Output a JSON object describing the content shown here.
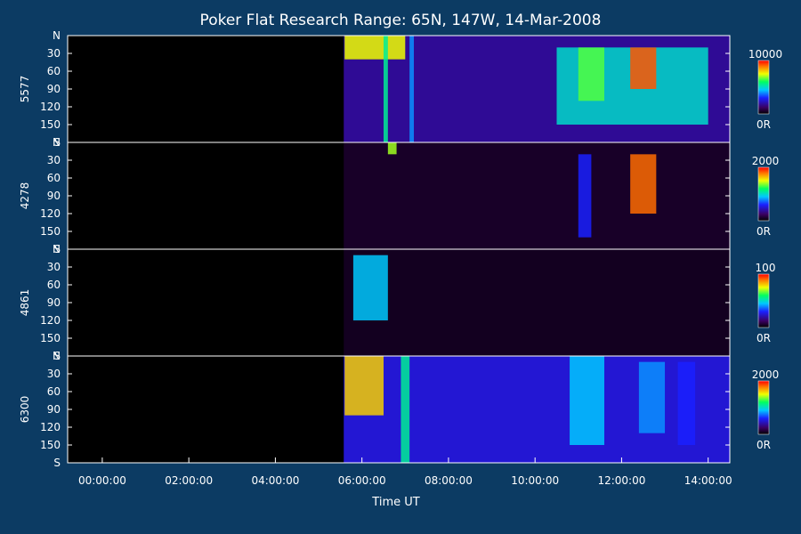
{
  "chart_data": {
    "type": "heatmap",
    "title": "Poker Flat Research Range: 65N, 147W, 14-Mar-2008",
    "xlabel": "Time UT",
    "x_range_hours": [
      -0.8,
      14.5
    ],
    "x_ticks": [
      {
        "label": "00:00:00",
        "hours": 0
      },
      {
        "label": "02:00:00",
        "hours": 2
      },
      {
        "label": "04:00:00",
        "hours": 4
      },
      {
        "label": "06:00:00",
        "hours": 6
      },
      {
        "label": "08:00:00",
        "hours": 8
      },
      {
        "label": "10:00:00",
        "hours": 10
      },
      {
        "label": "12:00:00",
        "hours": 12
      },
      {
        "label": "14:00:00",
        "hours": 14
      }
    ],
    "y_range_deg": [
      0,
      180
    ],
    "y_ticks": [
      {
        "label": "N",
        "value": 0
      },
      {
        "label": "30",
        "value": 30
      },
      {
        "label": "60",
        "value": 60
      },
      {
        "label": "90",
        "value": 90
      },
      {
        "label": "120",
        "value": 120
      },
      {
        "label": "150",
        "value": 150
      },
      {
        "label": "S",
        "value": 180
      }
    ],
    "data_start_hours": 5.58,
    "panels": [
      {
        "channel": "5577",
        "colorbar_max": "10000",
        "colorbar_min": "0R",
        "base_level": 0.18,
        "features": [
          {
            "t0": 5.6,
            "t1": 7.0,
            "y0": 0,
            "y1": 40,
            "level": 0.75
          },
          {
            "t0": 6.5,
            "t1": 6.6,
            "y0": 0,
            "y1": 180,
            "level": 0.55
          },
          {
            "t0": 7.1,
            "t1": 7.2,
            "y0": 0,
            "y1": 180,
            "level": 0.4
          },
          {
            "t0": 10.5,
            "t1": 14.0,
            "y0": 20,
            "y1": 150,
            "level": 0.5
          },
          {
            "t0": 11.0,
            "t1": 11.6,
            "y0": 20,
            "y1": 110,
            "level": 0.65
          },
          {
            "t0": 12.2,
            "t1": 12.8,
            "y0": 20,
            "y1": 90,
            "level": 0.92
          }
        ]
      },
      {
        "channel": "4278",
        "colorbar_max": "2000",
        "colorbar_min": "0R",
        "base_level": 0.05,
        "features": [
          {
            "t0": 6.6,
            "t1": 6.8,
            "y0": 0,
            "y1": 20,
            "level": 0.7
          },
          {
            "t0": 11.0,
            "t1": 11.3,
            "y0": 20,
            "y1": 160,
            "level": 0.3
          },
          {
            "t0": 12.2,
            "t1": 12.8,
            "y0": 20,
            "y1": 120,
            "level": 0.9
          }
        ]
      },
      {
        "channel": "4861",
        "colorbar_max": "100",
        "colorbar_min": "0R",
        "base_level": 0.04,
        "features": [
          {
            "t0": 5.8,
            "t1": 6.6,
            "y0": 10,
            "y1": 120,
            "level": 0.45
          }
        ]
      },
      {
        "channel": "6300",
        "colorbar_max": "2000",
        "colorbar_min": "0R",
        "base_level": 0.25,
        "features": [
          {
            "t0": 5.6,
            "t1": 6.5,
            "y0": 0,
            "y1": 100,
            "level": 0.8
          },
          {
            "t0": 6.9,
            "t1": 7.1,
            "y0": 0,
            "y1": 180,
            "level": 0.55
          },
          {
            "t0": 10.8,
            "t1": 11.6,
            "y0": 0,
            "y1": 150,
            "level": 0.45
          },
          {
            "t0": 12.4,
            "t1": 13.0,
            "y0": 10,
            "y1": 130,
            "level": 0.4
          },
          {
            "t0": 13.3,
            "t1": 13.7,
            "y0": 10,
            "y1": 150,
            "level": 0.3
          }
        ]
      }
    ]
  }
}
